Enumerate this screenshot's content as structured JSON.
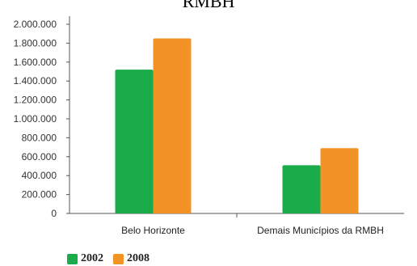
{
  "chart_data": {
    "type": "bar",
    "title": "RMBH",
    "categories": [
      "Belo Horizonte",
      "Demais Municípios da RMBH"
    ],
    "series": [
      {
        "name": "2002",
        "values": [
          1520000,
          510000
        ],
        "color": "#1aab4b"
      },
      {
        "name": "2008",
        "values": [
          1850000,
          690000
        ],
        "color": "#f39325"
      }
    ],
    "ylim": [
      0,
      2000000
    ],
    "yticks": [
      0,
      200000,
      400000,
      600000,
      800000,
      1000000,
      1200000,
      1400000,
      1600000,
      1800000,
      2000000
    ],
    "ytick_labels": [
      "0",
      "200.000",
      "400.000",
      "600.000",
      "800.000",
      "1.000.000",
      "1.200.000",
      "1.400.000",
      "1.600.000",
      "1.800.000",
      "2.000.000"
    ],
    "grid": false,
    "legend_position": "bottom-left"
  }
}
